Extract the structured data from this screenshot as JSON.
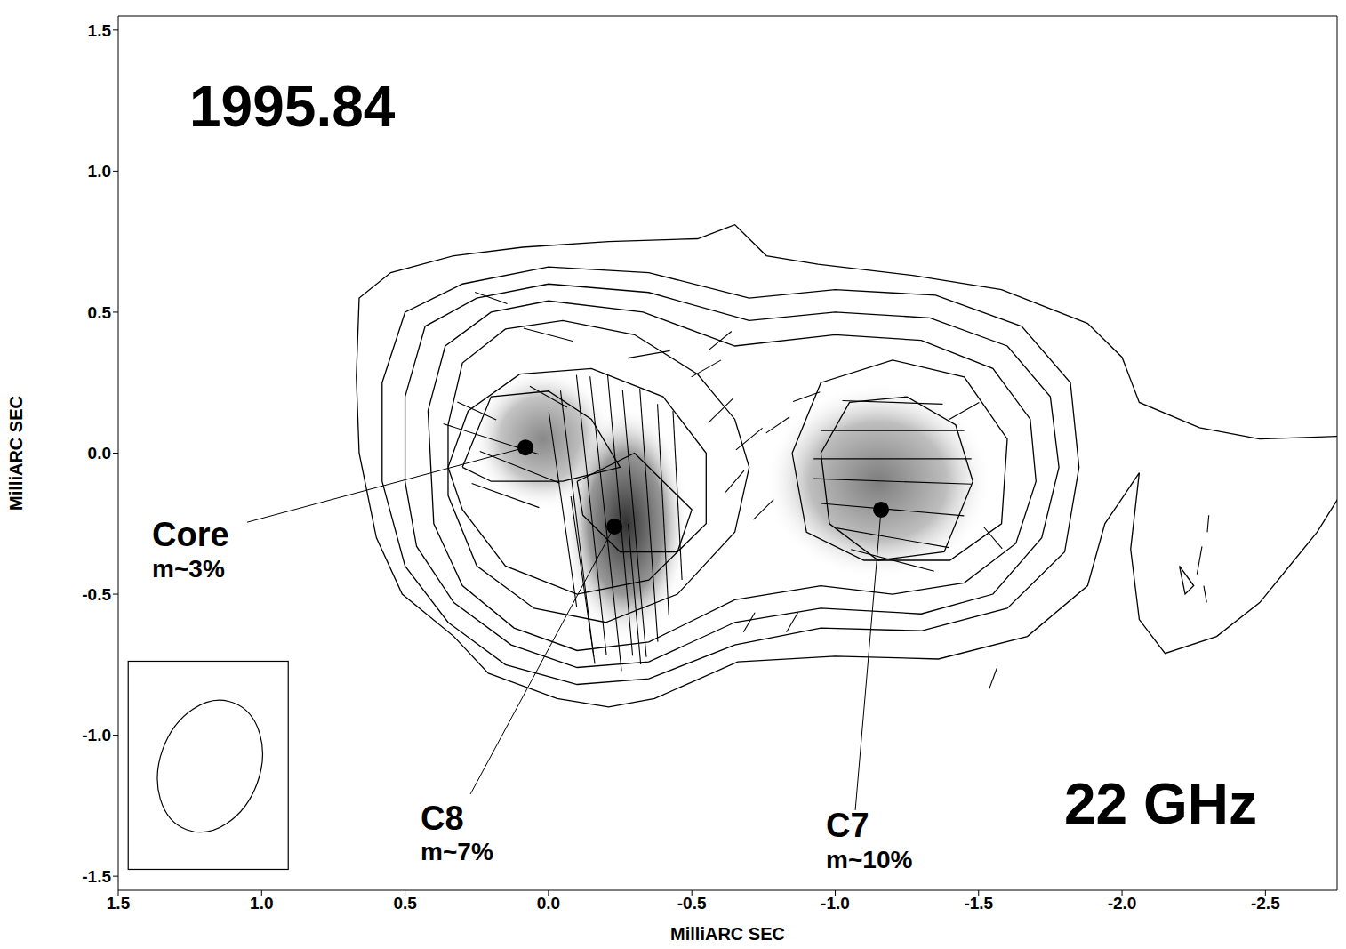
{
  "chart_data": {
    "type": "contour",
    "title": "1995.84",
    "subtitle": "22 GHz",
    "x_label": "MilliARC SEC",
    "y_label": "MilliARC SEC",
    "color": "#000000",
    "xlim": [
      1.5,
      -2.75
    ],
    "ylim": [
      -1.55,
      1.55
    ],
    "xticks": [
      1.5,
      {
        "value": 1,
        "label": "1.0"
      },
      0.5,
      {
        "value": 0,
        "label": "0.0"
      },
      -0.5,
      {
        "value": -1,
        "label": "-1.0"
      },
      -1.5,
      {
        "value": -2,
        "label": "-2.0"
      },
      -2.5
    ],
    "yticks": [
      -1.5,
      {
        "value": -1,
        "label": "-1.0"
      },
      -0.5,
      {
        "value": 0,
        "label": "0.0"
      },
      0.5,
      {
        "value": 1,
        "label": "1.0"
      },
      1.5
    ],
    "contours": [
      [
        [
          -2.76,
          0.06
        ],
        [
          -2.48,
          0.05
        ],
        [
          -2.27,
          0.09
        ],
        [
          -2.06,
          0.18
        ],
        [
          -2.0,
          0.34
        ],
        [
          -1.88,
          0.46
        ],
        [
          -1.58,
          0.58
        ],
        [
          -1.27,
          0.63
        ],
        [
          -0.94,
          0.67
        ],
        [
          -0.76,
          0.7
        ],
        [
          -0.65,
          0.81
        ],
        [
          -0.52,
          0.76
        ],
        [
          -0.21,
          0.75
        ],
        [
          0.09,
          0.73
        ],
        [
          0.33,
          0.7
        ],
        [
          0.55,
          0.64
        ],
        [
          0.66,
          0.55
        ],
        [
          0.67,
          0.27
        ],
        [
          0.66,
          0.0
        ],
        [
          0.6,
          -0.3
        ],
        [
          0.51,
          -0.5
        ],
        [
          0.33,
          -0.65
        ],
        [
          0.21,
          -0.78
        ],
        [
          -0.03,
          -0.87
        ],
        [
          -0.21,
          -0.9
        ],
        [
          -0.37,
          -0.87
        ],
        [
          -0.66,
          -0.74
        ],
        [
          -1.0,
          -0.72
        ],
        [
          -1.36,
          -0.73
        ],
        [
          -1.67,
          -0.65
        ],
        [
          -1.88,
          -0.47
        ],
        [
          -1.94,
          -0.25
        ],
        [
          -2.06,
          -0.07
        ],
        [
          -2.03,
          -0.34
        ],
        [
          -2.06,
          -0.59
        ],
        [
          -2.15,
          -0.71
        ],
        [
          -2.33,
          -0.65
        ],
        [
          -2.48,
          -0.53
        ],
        [
          -2.6,
          -0.38
        ],
        [
          -2.68,
          -0.28
        ],
        [
          -2.76,
          -0.15
        ]
      ],
      [
        [
          0.58,
          0.25
        ],
        [
          0.5,
          0.5
        ],
        [
          0.3,
          0.6
        ],
        [
          0.0,
          0.66
        ],
        [
          -0.35,
          0.64
        ],
        [
          -0.7,
          0.55
        ],
        [
          -1.0,
          0.58
        ],
        [
          -1.35,
          0.56
        ],
        [
          -1.65,
          0.45
        ],
        [
          -1.82,
          0.25
        ],
        [
          -1.85,
          -0.05
        ],
        [
          -1.8,
          -0.35
        ],
        [
          -1.6,
          -0.55
        ],
        [
          -1.3,
          -0.63
        ],
        [
          -0.95,
          -0.62
        ],
        [
          -0.65,
          -0.68
        ],
        [
          -0.35,
          -0.8
        ],
        [
          -0.1,
          -0.82
        ],
        [
          0.15,
          -0.75
        ],
        [
          0.35,
          -0.6
        ],
        [
          0.5,
          -0.4
        ],
        [
          0.58,
          -0.1
        ],
        [
          0.58,
          0.25
        ]
      ],
      [
        [
          0.5,
          0.2
        ],
        [
          0.43,
          0.45
        ],
        [
          0.25,
          0.55
        ],
        [
          0.0,
          0.6
        ],
        [
          -0.35,
          0.57
        ],
        [
          -0.7,
          0.47
        ],
        [
          -1.0,
          0.5
        ],
        [
          -1.33,
          0.48
        ],
        [
          -1.6,
          0.38
        ],
        [
          -1.75,
          0.2
        ],
        [
          -1.78,
          -0.05
        ],
        [
          -1.72,
          -0.3
        ],
        [
          -1.55,
          -0.5
        ],
        [
          -1.3,
          -0.57
        ],
        [
          -0.95,
          -0.55
        ],
        [
          -0.65,
          -0.6
        ],
        [
          -0.35,
          -0.74
        ],
        [
          -0.1,
          -0.76
        ],
        [
          0.13,
          -0.68
        ],
        [
          0.33,
          -0.53
        ],
        [
          0.46,
          -0.33
        ],
        [
          0.5,
          -0.1
        ],
        [
          0.5,
          0.2
        ]
      ],
      [
        [
          0.42,
          0.15
        ],
        [
          0.36,
          0.38
        ],
        [
          0.2,
          0.5
        ],
        [
          0.0,
          0.54
        ],
        [
          -0.33,
          0.5
        ],
        [
          -0.65,
          0.38
        ],
        [
          -1.0,
          0.42
        ],
        [
          -1.3,
          0.4
        ],
        [
          -1.55,
          0.3
        ],
        [
          -1.68,
          0.12
        ],
        [
          -1.7,
          -0.1
        ],
        [
          -1.63,
          -0.32
        ],
        [
          -1.45,
          -0.46
        ],
        [
          -1.2,
          -0.5
        ],
        [
          -0.95,
          -0.47
        ],
        [
          -0.65,
          -0.52
        ],
        [
          -0.35,
          -0.67
        ],
        [
          -0.1,
          -0.7
        ],
        [
          0.12,
          -0.62
        ],
        [
          0.3,
          -0.47
        ],
        [
          0.4,
          -0.25
        ],
        [
          0.42,
          0.15
        ]
      ],
      [
        [
          0.35,
          0.1
        ],
        [
          0.3,
          0.32
        ],
        [
          0.15,
          0.44
        ],
        [
          -0.05,
          0.47
        ],
        [
          -0.3,
          0.42
        ],
        [
          -0.52,
          0.28
        ],
        [
          -0.65,
          0.12
        ],
        [
          -0.7,
          -0.05
        ],
        [
          -0.65,
          -0.28
        ],
        [
          -0.45,
          -0.5
        ],
        [
          -0.2,
          -0.6
        ],
        [
          0.05,
          -0.55
        ],
        [
          0.25,
          -0.4
        ],
        [
          0.35,
          -0.15
        ],
        [
          0.35,
          0.1
        ]
      ],
      [
        [
          -0.85,
          0.0
        ],
        [
          -0.95,
          0.25
        ],
        [
          -1.2,
          0.33
        ],
        [
          -1.45,
          0.27
        ],
        [
          -1.6,
          0.05
        ],
        [
          -1.58,
          -0.25
        ],
        [
          -1.4,
          -0.38
        ],
        [
          -1.1,
          -0.38
        ],
        [
          -0.9,
          -0.28
        ],
        [
          -0.85,
          0.0
        ]
      ],
      [
        [
          0.35,
          -0.05
        ],
        [
          0.28,
          0.15
        ],
        [
          0.1,
          0.28
        ],
        [
          -0.15,
          0.3
        ],
        [
          -0.4,
          0.2
        ],
        [
          -0.55,
          0.0
        ],
        [
          -0.55,
          -0.25
        ],
        [
          -0.35,
          -0.45
        ],
        [
          -0.1,
          -0.5
        ],
        [
          0.15,
          -0.4
        ],
        [
          0.3,
          -0.2
        ],
        [
          0.35,
          -0.05
        ]
      ],
      [
        [
          -0.95,
          0.0
        ],
        [
          -1.05,
          0.18
        ],
        [
          -1.25,
          0.2
        ],
        [
          -1.42,
          0.1
        ],
        [
          -1.48,
          -0.1
        ],
        [
          -1.38,
          -0.35
        ],
        [
          -1.15,
          -0.38
        ],
        [
          -0.98,
          -0.25
        ],
        [
          -0.95,
          0.0
        ]
      ],
      [
        [
          0.3,
          -0.05
        ],
        [
          0.2,
          0.2
        ],
        [
          0.0,
          0.22
        ],
        [
          -0.15,
          0.12
        ],
        [
          -0.25,
          -0.05
        ],
        [
          -0.05,
          -0.1
        ],
        [
          0.2,
          -0.1
        ],
        [
          0.3,
          -0.05
        ]
      ],
      [
        [
          -0.1,
          -0.1
        ],
        [
          -0.3,
          0.0
        ],
        [
          -0.5,
          -0.2
        ],
        [
          -0.45,
          -0.35
        ],
        [
          -0.25,
          -0.35
        ],
        [
          -0.12,
          -0.22
        ],
        [
          -0.1,
          -0.1
        ]
      ],
      [
        [
          -2.2,
          -0.4
        ],
        [
          -2.22,
          -0.5
        ],
        [
          -2.25,
          -0.47
        ],
        [
          -2.2,
          -0.4
        ]
      ]
    ],
    "intensity_patches": [
      {
        "x": 0.02,
        "y": 0.05,
        "rx": 0.25,
        "ry": 0.25,
        "intensity": 0.55
      },
      {
        "x": -0.27,
        "y": -0.25,
        "rx": 0.22,
        "ry": 0.42,
        "intensity": 0.95
      },
      {
        "x": -1.15,
        "y": -0.1,
        "rx": 0.4,
        "ry": 0.35,
        "intensity": 0.6
      }
    ],
    "polarization_vectors": [
      {
        "x": -0.05,
        "y": -0.2,
        "angle": -8,
        "length": 0.7
      },
      {
        "x": -0.1,
        "y": -0.25,
        "angle": -7,
        "length": 0.95
      },
      {
        "x": -0.15,
        "y": -0.22,
        "angle": -6,
        "length": 1.0
      },
      {
        "x": -0.2,
        "y": -0.25,
        "angle": -6,
        "length": 1.05
      },
      {
        "x": -0.25,
        "y": -0.22,
        "angle": -5,
        "length": 1.0
      },
      {
        "x": -0.3,
        "y": -0.25,
        "angle": -5,
        "length": 0.95
      },
      {
        "x": -0.35,
        "y": -0.22,
        "angle": -4,
        "length": 0.9
      },
      {
        "x": -0.4,
        "y": -0.2,
        "angle": -3,
        "length": 0.75
      },
      {
        "x": -0.45,
        "y": -0.15,
        "angle": -3,
        "length": 0.6
      },
      {
        "x": -0.12,
        "y": -0.45,
        "angle": -8,
        "length": 0.6
      },
      {
        "x": -0.3,
        "y": -0.5,
        "angle": -5,
        "length": 0.5
      },
      {
        "x": -1.2,
        "y": 0.18,
        "angle": 92,
        "length": 0.35
      },
      {
        "x": -1.2,
        "y": 0.08,
        "angle": 90,
        "length": 0.5
      },
      {
        "x": -1.2,
        "y": -0.02,
        "angle": 90,
        "length": 0.55
      },
      {
        "x": -1.2,
        "y": -0.1,
        "angle": 92,
        "length": 0.55
      },
      {
        "x": -1.2,
        "y": -0.2,
        "angle": 95,
        "length": 0.5
      },
      {
        "x": -1.2,
        "y": -0.3,
        "angle": 100,
        "length": 0.4
      },
      {
        "x": -1.2,
        "y": -0.38,
        "angle": 105,
        "length": 0.3
      },
      {
        "x": -1.45,
        "y": 0.15,
        "angle": 60,
        "length": 0.12
      },
      {
        "x": -1.55,
        "y": -0.3,
        "angle": 140,
        "length": 0.1
      },
      {
        "x": 0.2,
        "y": 0.05,
        "angle": 108,
        "length": 0.35
      },
      {
        "x": 0.1,
        "y": -0.05,
        "angle": 112,
        "length": 0.3
      },
      {
        "x": 0.15,
        "y": -0.15,
        "angle": 110,
        "length": 0.25
      },
      {
        "x": 0.25,
        "y": 0.15,
        "angle": 115,
        "length": 0.15
      },
      {
        "x": 0.0,
        "y": 0.2,
        "angle": 120,
        "length": 0.15
      },
      {
        "x": 0.2,
        "y": 0.55,
        "angle": 110,
        "length": 0.12
      },
      {
        "x": 0.0,
        "y": 0.42,
        "angle": 105,
        "length": 0.18
      },
      {
        "x": -0.35,
        "y": 0.35,
        "angle": 80,
        "length": 0.15
      },
      {
        "x": -0.55,
        "y": 0.3,
        "angle": 60,
        "length": 0.12
      },
      {
        "x": -0.6,
        "y": 0.15,
        "angle": 45,
        "length": 0.12
      },
      {
        "x": -0.7,
        "y": 0.05,
        "angle": 50,
        "length": 0.12
      },
      {
        "x": -0.8,
        "y": 0.1,
        "angle": 55,
        "length": 0.1
      },
      {
        "x": -0.65,
        "y": -0.1,
        "angle": 40,
        "length": 0.1
      },
      {
        "x": -0.75,
        "y": -0.2,
        "angle": 45,
        "length": 0.1
      },
      {
        "x": -0.9,
        "y": 0.2,
        "angle": 70,
        "length": 0.1
      },
      {
        "x": -0.6,
        "y": 0.4,
        "angle": 50,
        "length": 0.1
      },
      {
        "x": -0.7,
        "y": -0.6,
        "angle": 30,
        "length": 0.08
      },
      {
        "x": -0.85,
        "y": -0.6,
        "angle": 30,
        "length": 0.08
      },
      {
        "x": -1.55,
        "y": -0.8,
        "angle": 20,
        "length": 0.08
      },
      {
        "x": -2.27,
        "y": -0.38,
        "angle": 10,
        "length": 0.1
      },
      {
        "x": -2.3,
        "y": -0.25,
        "angle": 5,
        "length": 0.06
      },
      {
        "x": -2.29,
        "y": -0.5,
        "angle": 170,
        "length": 0.06
      }
    ],
    "components": [
      {
        "name": "Core",
        "text": "m~3%",
        "x": 0.08,
        "y": 0.02
      },
      {
        "name": "C8",
        "text": "m~7%",
        "x": -0.23,
        "y": -0.26
      },
      {
        "name": "C7",
        "text": "m~10%",
        "x": -1.16,
        "y": -0.2
      }
    ],
    "beam": {
      "x": 1.18,
      "y": -1.11,
      "major": 0.48,
      "minor": 0.35,
      "angle": 20
    }
  }
}
